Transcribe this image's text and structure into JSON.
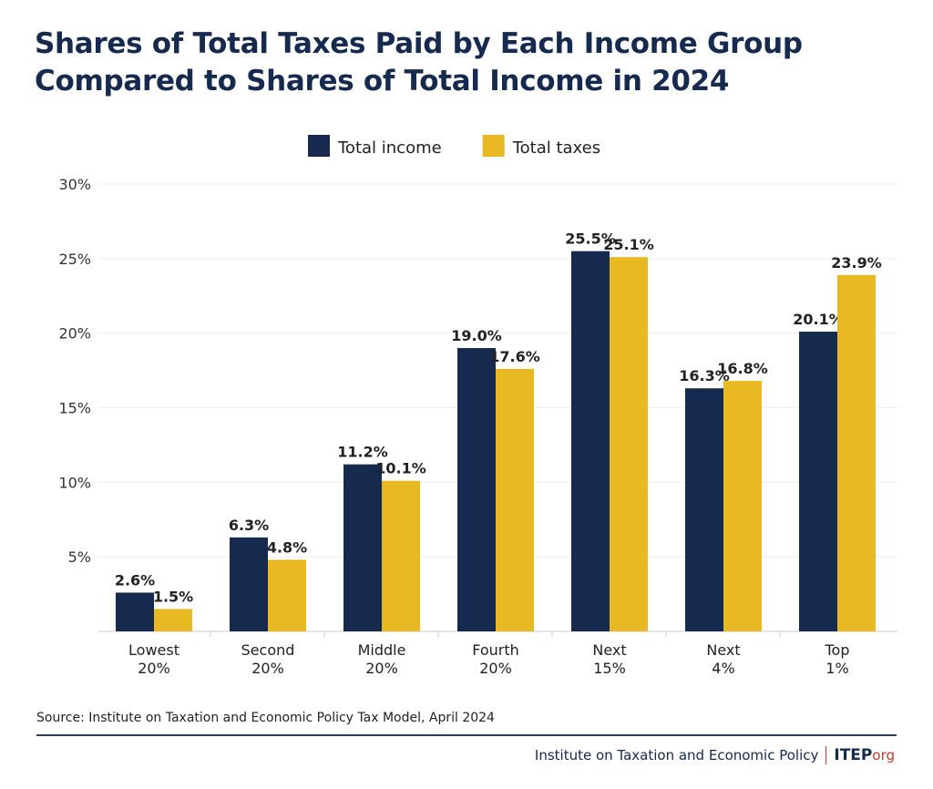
{
  "chart_data": {
    "type": "bar",
    "title": "Shares of Total Taxes Paid by Each Income Group Compared to Shares of Total Income in 2024",
    "categories": [
      [
        "Lowest",
        "20%"
      ],
      [
        "Second",
        "20%"
      ],
      [
        "Middle",
        "20%"
      ],
      [
        "Fourth",
        "20%"
      ],
      [
        "Next",
        "15%"
      ],
      [
        "Next",
        "4%"
      ],
      [
        "Top",
        "1%"
      ]
    ],
    "series": [
      {
        "name": "Total income",
        "color": "#152a4e",
        "values": [
          2.6,
          6.3,
          11.2,
          19.0,
          25.5,
          16.3,
          20.1
        ]
      },
      {
        "name": "Total taxes",
        "color": "#e8b923",
        "values": [
          1.5,
          4.8,
          10.1,
          17.6,
          25.1,
          16.8,
          23.9
        ]
      }
    ],
    "ylim": [
      0,
      30
    ],
    "yticks": [
      "5%",
      "10%",
      "15%",
      "20%",
      "25%",
      "30%"
    ],
    "grid": true,
    "legend": "top-center",
    "data_label_format": "%.1f%"
  },
  "source": "Source: Institute on Taxation and Economic Policy Tax Model, April 2024",
  "footer": {
    "org": "Institute on Taxation and Economic Policy",
    "logo": "ITEP",
    "logo_suffix": "org"
  }
}
